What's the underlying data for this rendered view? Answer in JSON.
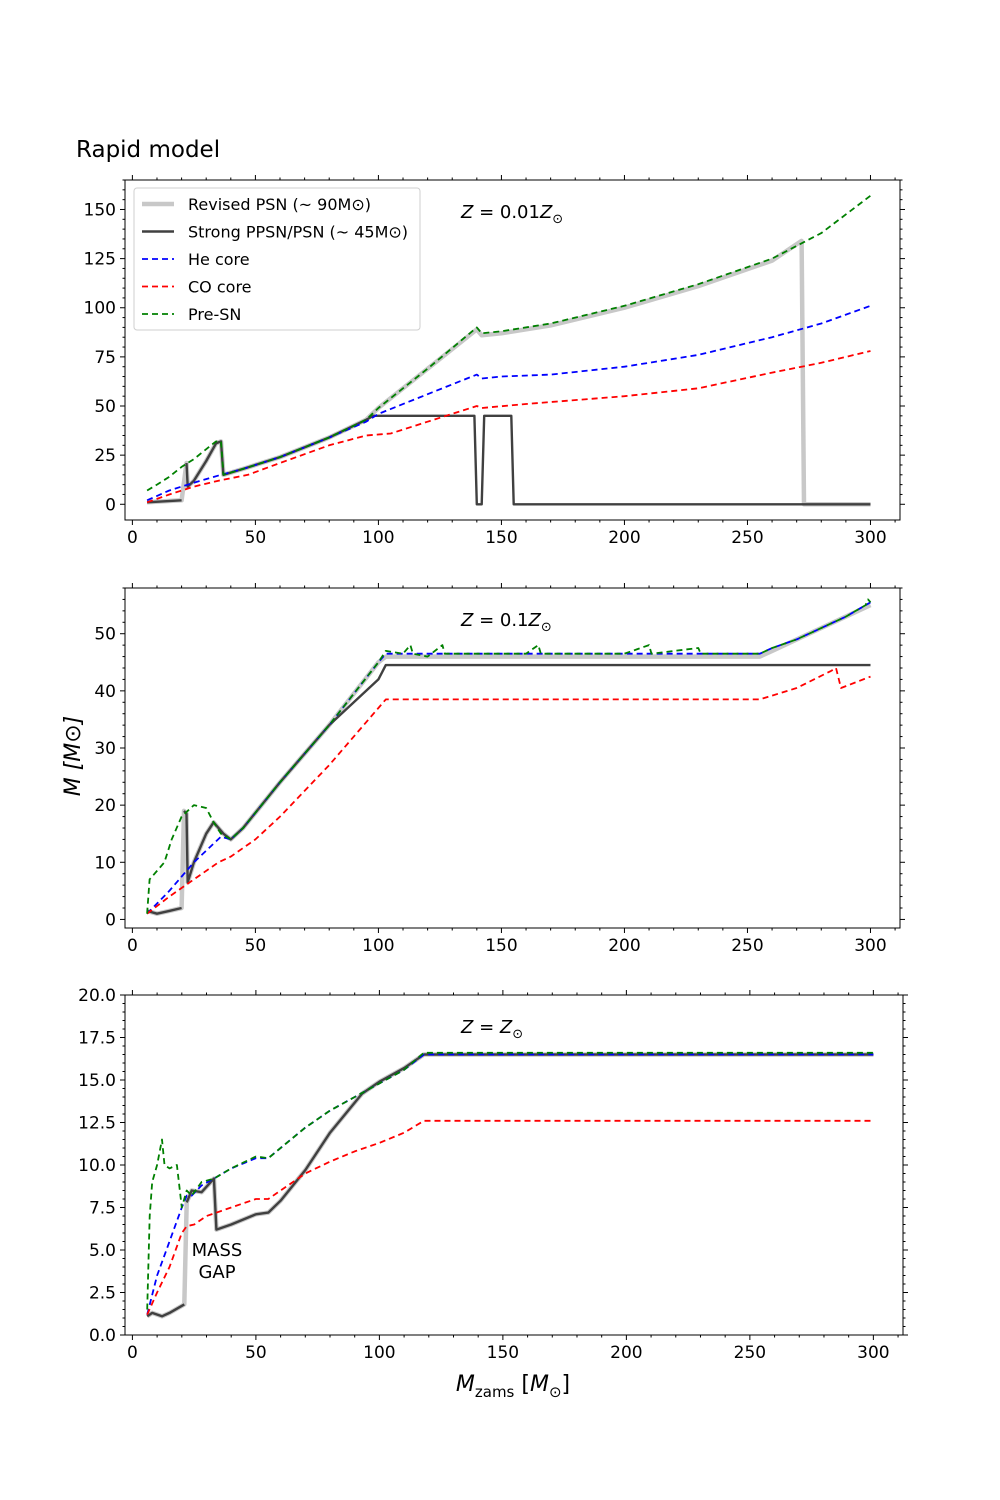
{
  "figure_title": "Rapid model",
  "ylabel_main": "M [M⊙]",
  "xlabel_main": "Mzams [M⊙]",
  "colors": {
    "revised_psn": "#c8c8c8",
    "strong_ppsn": "#404040",
    "he_core": "#0000ff",
    "co_core": "#ff0000",
    "pre_sn": "#008000"
  },
  "chart_data": [
    {
      "type": "line",
      "annotation": "Z = 0.01Z⊙",
      "xlim": [
        -3,
        312
      ],
      "ylim": [
        -8,
        165
      ],
      "xticks": [
        0,
        50,
        100,
        150,
        200,
        250,
        300
      ],
      "yticks": [
        0,
        25,
        50,
        75,
        100,
        125,
        150
      ],
      "ytick_labels": [
        "0",
        "25",
        "50",
        "75",
        "100",
        "125",
        "150"
      ],
      "legend": {
        "placement": "top-left",
        "entries": [
          {
            "label": "Revised PSN (~ 90M⊙)",
            "series": "revised_psn"
          },
          {
            "label": "Strong PPSN/PSN (~ 45M⊙)",
            "series": "strong_ppsn"
          },
          {
            "label": "He core",
            "series": "he_core"
          },
          {
            "label": "CO core",
            "series": "co_core"
          },
          {
            "label": "Pre-SN",
            "series": "pre_sn"
          }
        ]
      },
      "series": [
        {
          "key": "pre_sn",
          "style": "dashed",
          "x": [
            6,
            10,
            15,
            20,
            25,
            30,
            34,
            36,
            37,
            45,
            60,
            80,
            95,
            100,
            120,
            140,
            142,
            150,
            170,
            200,
            230,
            260,
            280,
            300
          ],
          "y": [
            7,
            10,
            14,
            19,
            23,
            28,
            32,
            32,
            15,
            18,
            24,
            34,
            43,
            49,
            69,
            90,
            87,
            88,
            92,
            101,
            112,
            125,
            138,
            157
          ]
        },
        {
          "key": "he_core",
          "style": "dashed",
          "x": [
            6,
            15,
            25,
            36,
            45,
            60,
            80,
            95,
            100,
            120,
            140,
            142,
            150,
            170,
            200,
            230,
            260,
            280,
            300
          ],
          "y": [
            2,
            7,
            11,
            15,
            18,
            24,
            34,
            42,
            46,
            56,
            66,
            64,
            65,
            66,
            70,
            76,
            85,
            92,
            101
          ]
        },
        {
          "key": "co_core",
          "style": "dashed",
          "x": [
            6,
            15,
            25,
            35,
            47,
            60,
            80,
            95,
            105,
            120,
            140,
            142,
            160,
            200,
            230,
            260,
            280,
            300
          ],
          "y": [
            1,
            5,
            9,
            12,
            15,
            21,
            30,
            35,
            36,
            42,
            50,
            49,
            51,
            55,
            59,
            67,
            72,
            78
          ]
        },
        {
          "key": "revised_psn",
          "style": "solid",
          "x": [
            6,
            20,
            22,
            22.5,
            25,
            30,
            34,
            36,
            37,
            45,
            60,
            80,
            95,
            100,
            120,
            140,
            142,
            150,
            170,
            200,
            230,
            260,
            272,
            273,
            300
          ],
          "y": [
            1,
            2,
            21,
            9,
            12,
            22,
            31,
            32,
            15,
            18,
            24,
            34,
            43,
            49,
            69,
            89,
            86,
            87,
            91,
            100,
            111,
            124,
            134,
            0,
            0
          ]
        },
        {
          "key": "strong_ppsn",
          "style": "solid",
          "x": [
            6,
            20,
            null,
            22,
            22.5,
            25,
            30,
            34,
            36,
            37,
            45,
            60,
            80,
            95,
            98,
            139,
            140,
            142,
            143,
            154,
            155,
            300
          ],
          "y": [
            1,
            2,
            null,
            21,
            9,
            12,
            22,
            31,
            32,
            15,
            18,
            24,
            34,
            43,
            45,
            45,
            0,
            0,
            45,
            45,
            0,
            0
          ]
        }
      ]
    },
    {
      "type": "line",
      "annotation": "Z = 0.1Z⊙",
      "xlim": [
        -3,
        312
      ],
      "ylim": [
        -1.5,
        58
      ],
      "xticks": [
        0,
        50,
        100,
        150,
        200,
        250,
        300
      ],
      "yticks": [
        0,
        10,
        20,
        30,
        40,
        50
      ],
      "ytick_labels": [
        "0",
        "10",
        "20",
        "30",
        "40",
        "50"
      ],
      "series": [
        {
          "key": "pre_sn",
          "style": "dashed",
          "x": [
            6,
            7,
            10,
            13,
            16,
            20,
            25,
            30,
            33,
            36,
            40,
            45,
            60,
            80,
            100,
            103,
            110,
            113,
            114,
            120,
            126,
            127,
            140,
            160,
            165,
            166,
            180,
            200,
            210,
            211,
            230,
            231,
            255,
            260,
            270,
            280,
            290,
            298,
            299,
            300
          ],
          "y": [
            1,
            7,
            8.5,
            10,
            14,
            18,
            20,
            19.5,
            17,
            15,
            14,
            16,
            24,
            34,
            45,
            47,
            46.5,
            48,
            46.5,
            46,
            48,
            46.5,
            46.5,
            46.5,
            48,
            46.5,
            46.5,
            46.5,
            48,
            46.5,
            47.5,
            46.5,
            46.5,
            47.5,
            49,
            51,
            53,
            55,
            56,
            55.5
          ]
        },
        {
          "key": "he_core",
          "style": "dashed",
          "x": [
            6,
            15,
            25,
            36,
            40,
            45,
            60,
            80,
            100,
            103,
            120,
            160,
            200,
            230,
            255,
            260,
            270,
            280,
            290,
            300
          ],
          "y": [
            1,
            5,
            10,
            14.5,
            14,
            16,
            24,
            34,
            45,
            46.5,
            46.5,
            46.5,
            46.5,
            46.5,
            46.5,
            47.5,
            49,
            51,
            53,
            55.5
          ]
        },
        {
          "key": "co_core",
          "style": "dashed",
          "x": [
            6,
            15,
            25,
            35,
            40,
            50,
            60,
            80,
            100,
            103,
            110,
            130,
            160,
            200,
            230,
            255,
            270,
            284,
            286,
            288,
            300
          ],
          "y": [
            1,
            4,
            7,
            10,
            11,
            14,
            18,
            27,
            37,
            38.5,
            38.5,
            38.5,
            38.5,
            38.5,
            38.5,
            38.5,
            40.5,
            43.5,
            44,
            40.5,
            42.5
          ]
        },
        {
          "key": "revised_psn",
          "style": "solid",
          "x": [
            6,
            10,
            15,
            20,
            21,
            22,
            22.5,
            25,
            30,
            33,
            37,
            40,
            45,
            60,
            80,
            100,
            103,
            110,
            150,
            200,
            255,
            260,
            270,
            280,
            290,
            300
          ],
          "y": [
            1.5,
            1,
            1.5,
            2,
            19,
            18.5,
            6.5,
            10,
            15,
            17,
            15,
            14,
            16,
            24,
            34,
            45,
            46,
            46,
            46,
            46,
            46,
            47,
            49,
            51,
            53,
            55
          ]
        },
        {
          "key": "strong_ppsn",
          "style": "solid",
          "x": [
            6,
            10,
            15,
            20,
            null,
            21,
            22,
            22.5,
            25,
            30,
            33,
            37,
            40,
            45,
            60,
            80,
            100,
            103,
            300
          ],
          "y": [
            1.5,
            1,
            1.5,
            2,
            null,
            19,
            18.5,
            6.5,
            10,
            15,
            17,
            15,
            14,
            16,
            24,
            34,
            42,
            44.5,
            44.5
          ]
        }
      ]
    },
    {
      "type": "line",
      "annotation": "Z = Z⊙",
      "text_annotation": [
        "MASS",
        "GAP"
      ],
      "xlim": [
        -3,
        312
      ],
      "ylim": [
        0,
        20
      ],
      "xticks": [
        0,
        50,
        100,
        150,
        200,
        250,
        300
      ],
      "yticks": [
        0,
        2.5,
        5,
        7.5,
        10,
        12.5,
        15,
        17.5,
        20
      ],
      "ytick_labels": [
        "0.0",
        "2.5",
        "5.0",
        "7.5",
        "10.0",
        "12.5",
        "15.0",
        "17.5",
        "20.0"
      ],
      "series": [
        {
          "key": "pre_sn",
          "style": "dashed",
          "x": [
            6,
            7,
            8,
            10,
            12,
            13,
            15,
            18,
            20,
            22,
            24,
            28,
            33,
            40,
            50,
            55,
            60,
            70,
            80,
            90,
            100,
            110,
            118,
            130,
            150,
            200,
            250,
            300
          ],
          "y": [
            1.5,
            7,
            9,
            10,
            11.5,
            10,
            9.8,
            10,
            7.5,
            8.5,
            8.2,
            9,
            9.2,
            9.8,
            10.5,
            10.4,
            11,
            12.2,
            13.2,
            14,
            14.8,
            15.6,
            16.6,
            16.6,
            16.6,
            16.6,
            16.6,
            16.6
          ]
        },
        {
          "key": "he_core",
          "style": "dashed",
          "x": [
            6,
            10,
            15,
            20,
            22,
            24,
            28,
            33,
            40,
            50,
            55,
            60,
            70,
            80,
            90,
            100,
            110,
            118,
            150,
            200,
            250,
            300
          ],
          "y": [
            1.2,
            3.5,
            5.5,
            7.5,
            8.2,
            8.2,
            8.8,
            9.2,
            9.8,
            10.4,
            10.4,
            11,
            12.2,
            13.2,
            14,
            14.8,
            15.6,
            16.5,
            16.5,
            16.5,
            16.5,
            16.5
          ]
        },
        {
          "key": "co_core",
          "style": "dashed",
          "x": [
            6,
            10,
            15,
            20,
            22,
            25,
            30,
            40,
            50,
            55,
            60,
            70,
            80,
            90,
            100,
            110,
            118,
            150,
            200,
            250,
            300
          ],
          "y": [
            1.2,
            2.5,
            4,
            6,
            6.4,
            6.5,
            7,
            7.5,
            8,
            8,
            8.5,
            9.5,
            10.2,
            10.8,
            11.3,
            11.9,
            12.6,
            12.6,
            12.6,
            12.6,
            12.6
          ]
        },
        {
          "key": "revised_psn",
          "style": "solid",
          "x": [
            6,
            8,
            12,
            15,
            21,
            22,
            24,
            28,
            33,
            34,
            40,
            50,
            55,
            60,
            70,
            80,
            93,
            100,
            110,
            118,
            150,
            200,
            250,
            300
          ],
          "y": [
            1.1,
            1.3,
            1.1,
            1.3,
            1.8,
            7.8,
            8.5,
            8.4,
            9.2,
            6.2,
            6.5,
            7.1,
            7.2,
            7.9,
            9.7,
            11.9,
            14.2,
            14.9,
            15.7,
            16.5,
            16.5,
            16.5,
            16.5,
            16.5
          ]
        },
        {
          "key": "strong_ppsn",
          "style": "solid",
          "x": [
            6,
            8,
            12,
            15,
            21,
            null,
            22,
            24,
            28,
            33,
            34,
            40,
            50,
            55,
            60,
            70,
            80,
            93,
            100,
            110,
            118,
            150,
            200,
            250,
            300
          ],
          "y": [
            1.1,
            1.3,
            1.1,
            1.3,
            1.8,
            null,
            7.8,
            8.5,
            8.4,
            9.2,
            6.2,
            6.5,
            7.1,
            7.2,
            7.9,
            9.7,
            11.9,
            14.2,
            14.9,
            15.7,
            16.5,
            16.5,
            16.5,
            16.5,
            16.5
          ]
        }
      ]
    }
  ]
}
